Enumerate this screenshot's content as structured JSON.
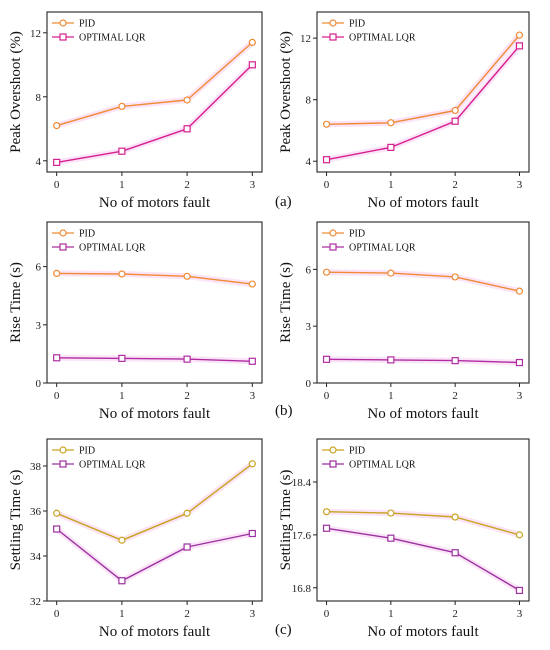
{
  "figure": {
    "panel_labels": [
      "(a)",
      "(b)",
      "(c)"
    ]
  },
  "colors": {
    "PID_peak": "#f08a35",
    "LQR_peak": "#d61f8f",
    "PID_rise": "#f08a35",
    "LQR_rise": "#b02ca2",
    "PID_settle": "#c9a321",
    "LQR_settle": "#9b30a0",
    "shadow": "#f7cdf1",
    "axis": "#222222"
  },
  "chart_data": [
    {
      "type": "line",
      "xlabel": "No of motors fault",
      "ylabel": "Peak Overshoot (%)",
      "x": [
        0,
        1,
        2,
        3
      ],
      "xticks": [
        0,
        1,
        2,
        3
      ],
      "ylim": [
        3.3,
        13.3
      ],
      "yticks": [
        4,
        8,
        12
      ],
      "legend": "top-left",
      "grid": false,
      "series": [
        {
          "name": "PID",
          "values": [
            6.2,
            7.4,
            7.8,
            11.4
          ],
          "color_key": "PID_peak"
        },
        {
          "name": "OPTIMAL LQR",
          "values": [
            3.9,
            4.6,
            6.0,
            10.0
          ],
          "color_key": "LQR_peak"
        }
      ]
    },
    {
      "type": "line",
      "xlabel": "No of motors fault",
      "ylabel": "Peak Overshoot (%)",
      "x": [
        0,
        1,
        2,
        3
      ],
      "xticks": [
        0,
        1,
        2,
        3
      ],
      "ylim": [
        3.3,
        13.7
      ],
      "yticks": [
        4,
        8,
        12
      ],
      "legend": "top-left",
      "grid": false,
      "series": [
        {
          "name": "PID",
          "values": [
            6.4,
            6.5,
            7.3,
            12.2
          ],
          "color_key": "PID_peak"
        },
        {
          "name": "OPTIMAL LQR",
          "values": [
            4.1,
            4.9,
            6.6,
            11.5
          ],
          "color_key": "LQR_peak"
        }
      ]
    },
    {
      "type": "line",
      "xlabel": "No of motors fault",
      "ylabel": "Rise Time (s)",
      "x": [
        0,
        1,
        2,
        3
      ],
      "xticks": [
        0,
        1,
        2,
        3
      ],
      "ylim": [
        0,
        8.3
      ],
      "yticks": [
        0,
        3,
        6
      ],
      "legend": "top-left",
      "grid": false,
      "series": [
        {
          "name": "PID",
          "values": [
            5.65,
            5.62,
            5.5,
            5.1
          ],
          "color_key": "PID_rise"
        },
        {
          "name": "OPTIMAL LQR",
          "values": [
            1.3,
            1.27,
            1.23,
            1.12
          ],
          "color_key": "LQR_rise"
        }
      ]
    },
    {
      "type": "line",
      "xlabel": "No of motors fault",
      "ylabel": "Rise Time (s)",
      "x": [
        0,
        1,
        2,
        3
      ],
      "xticks": [
        0,
        1,
        2,
        3
      ],
      "ylim": [
        0,
        8.5
      ],
      "yticks": [
        0,
        3,
        6
      ],
      "legend": "top-left",
      "grid": false,
      "series": [
        {
          "name": "PID",
          "values": [
            5.85,
            5.8,
            5.6,
            4.85
          ],
          "color_key": "PID_rise"
        },
        {
          "name": "OPTIMAL LQR",
          "values": [
            1.25,
            1.22,
            1.18,
            1.08
          ],
          "color_key": "LQR_rise"
        }
      ]
    },
    {
      "type": "line",
      "xlabel": "No of motors fault",
      "ylabel": "Settling Time (s)",
      "x": [
        0,
        1,
        2,
        3
      ],
      "xticks": [
        0,
        1,
        2,
        3
      ],
      "ylim": [
        32,
        39.2
      ],
      "yticks": [
        32,
        34,
        36,
        38
      ],
      "legend": "top-left",
      "grid": false,
      "series": [
        {
          "name": "PID",
          "values": [
            35.9,
            34.7,
            35.9,
            38.1
          ],
          "color_key": "PID_settle"
        },
        {
          "name": "OPTIMAL LQR",
          "values": [
            35.2,
            32.9,
            34.4,
            35.0
          ],
          "color_key": "LQR_settle"
        }
      ]
    },
    {
      "type": "line",
      "xlabel": "No of motors fault",
      "ylabel": "Settling Time (s)",
      "x": [
        0,
        1,
        2,
        3
      ],
      "xticks": [
        0,
        1,
        2,
        3
      ],
      "ylim": [
        16.6,
        19.05
      ],
      "yticks": [
        16.8,
        17.6,
        18.4
      ],
      "legend": "top-left",
      "grid": false,
      "series": [
        {
          "name": "PID",
          "values": [
            17.95,
            17.93,
            17.87,
            17.6
          ],
          "color_key": "PID_settle"
        },
        {
          "name": "OPTIMAL LQR",
          "values": [
            17.7,
            17.55,
            17.33,
            16.76
          ],
          "color_key": "LQR_settle"
        }
      ]
    }
  ]
}
